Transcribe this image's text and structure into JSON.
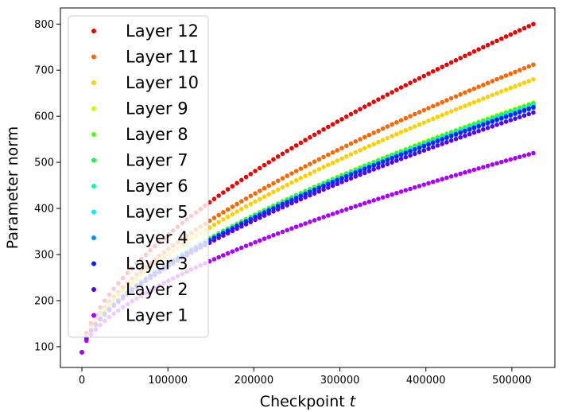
{
  "chart_data": {
    "type": "scatter",
    "title": "",
    "xlabel": "Checkpoint",
    "xlabel_var": "t",
    "ylabel": "Parameter norm",
    "xlim": [
      -25000,
      550000
    ],
    "ylim": [
      55,
      835
    ],
    "xticks": [
      0,
      100000,
      200000,
      300000,
      400000,
      500000
    ],
    "yticks": [
      100,
      200,
      300,
      400,
      500,
      600,
      700,
      800
    ],
    "grid": false,
    "legend_position": "top-left",
    "x_range": [
      0,
      525000
    ],
    "num_checkpoints": 100,
    "series": [
      {
        "name": "Layer 12",
        "color": "#ee0000",
        "start": 88,
        "final": 800
      },
      {
        "name": "Layer 11",
        "color": "#ff6600",
        "start": 88,
        "final": 712
      },
      {
        "name": "Layer 10",
        "color": "#ffd000",
        "start": 88,
        "final": 680
      },
      {
        "name": "Layer 9",
        "color": "#c8ff00",
        "start": 88,
        "final": 630
      },
      {
        "name": "Layer 8",
        "color": "#55ff00",
        "start": 88,
        "final": 628
      },
      {
        "name": "Layer 7",
        "color": "#00ff44",
        "start": 88,
        "final": 627
      },
      {
        "name": "Layer 6",
        "color": "#00ffaa",
        "start": 88,
        "final": 625
      },
      {
        "name": "Layer 5",
        "color": "#00f0ff",
        "start": 88,
        "final": 622
      },
      {
        "name": "Layer 4",
        "color": "#0090ff",
        "start": 88,
        "final": 618
      },
      {
        "name": "Layer 3",
        "color": "#0022ff",
        "start": 88,
        "final": 620
      },
      {
        "name": "Layer 2",
        "color": "#5500ff",
        "start": 88,
        "final": 608
      },
      {
        "name": "Layer 1",
        "color": "#aa00ff",
        "start": 88,
        "final": 520
      }
    ]
  }
}
